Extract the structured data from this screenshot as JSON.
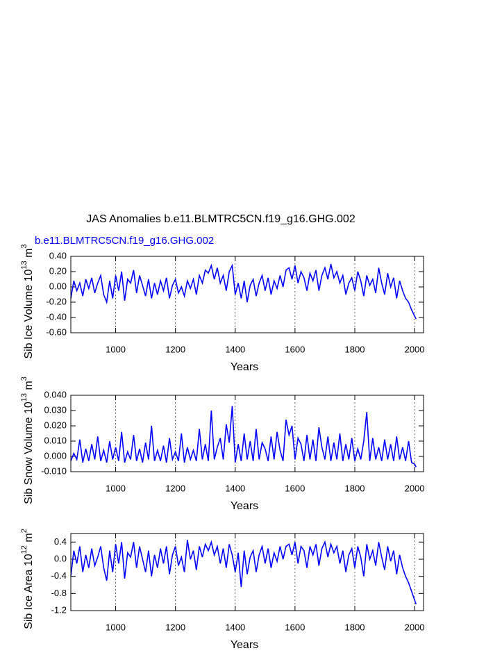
{
  "chart_data": [
    {
      "type": "line",
      "title": "JAS Anomalies b.e11.BLMTRC5CN.f19_g16.GHG.002",
      "ylabel": {
        "base": "Sib Ice Volume 10",
        "exp": "13",
        "unit": " m",
        "unit_exp": "3"
      },
      "xlabel": "Years",
      "x": [
        850,
        860,
        870,
        880,
        890,
        900,
        910,
        920,
        930,
        940,
        950,
        960,
        970,
        980,
        990,
        1000,
        1010,
        1020,
        1030,
        1040,
        1050,
        1060,
        1070,
        1080,
        1090,
        1100,
        1110,
        1120,
        1130,
        1140,
        1150,
        1160,
        1170,
        1180,
        1190,
        1200,
        1210,
        1220,
        1230,
        1240,
        1250,
        1260,
        1270,
        1280,
        1290,
        1300,
        1310,
        1320,
        1330,
        1340,
        1350,
        1360,
        1370,
        1380,
        1390,
        1400,
        1410,
        1420,
        1430,
        1440,
        1450,
        1460,
        1470,
        1480,
        1490,
        1500,
        1510,
        1520,
        1530,
        1540,
        1550,
        1560,
        1570,
        1580,
        1590,
        1600,
        1610,
        1620,
        1630,
        1640,
        1650,
        1660,
        1670,
        1680,
        1690,
        1700,
        1710,
        1720,
        1730,
        1740,
        1750,
        1760,
        1770,
        1780,
        1790,
        1800,
        1810,
        1820,
        1830,
        1840,
        1850,
        1860,
        1870,
        1880,
        1890,
        1900,
        1910,
        1920,
        1930,
        1940,
        1950,
        1960,
        1970,
        1980,
        1990,
        2000,
        2005
      ],
      "series": [
        {
          "name": "b.e11.BLMTRC5CN.f19_g16.GHG.002",
          "color": "#0000ff",
          "values": [
            -0.15,
            0.08,
            -0.05,
            0.05,
            -0.12,
            0.1,
            -0.02,
            0.12,
            -0.08,
            0.05,
            0.15,
            -0.1,
            -0.2,
            0.08,
            -0.15,
            0.15,
            -0.05,
            0.2,
            -0.18,
            0.1,
            0.05,
            0.22,
            -0.08,
            0.15,
            0.02,
            -0.12,
            0.1,
            -0.15,
            0.05,
            -0.1,
            0.08,
            -0.05,
            0.12,
            -0.15,
            0.02,
            0.1,
            -0.08,
            0.0,
            -0.12,
            0.08,
            -0.02,
            0.1,
            -0.1,
            0.15,
            0.05,
            0.22,
            0.18,
            0.28,
            0.1,
            0.25,
            0.05,
            0.15,
            -0.05,
            0.2,
            0.28,
            -0.1,
            0.05,
            -0.15,
            0.08,
            -0.2,
            0.02,
            0.1,
            -0.12,
            0.05,
            0.15,
            -0.05,
            0.12,
            -0.1,
            0.08,
            -0.02,
            0.15,
            0.0,
            0.22,
            0.25,
            0.1,
            0.28,
            0.05,
            0.2,
            0.12,
            -0.05,
            0.18,
            0.08,
            0.22,
            -0.05,
            0.15,
            0.25,
            0.1,
            0.3,
            0.12,
            0.2,
            0.05,
            0.15,
            -0.1,
            0.05,
            0.12,
            -0.05,
            0.2,
            0.08,
            -0.12,
            0.15,
            0.02,
            0.1,
            -0.08,
            0.25,
            0.05,
            -0.1,
            0.18,
            0.0,
            0.12,
            -0.15,
            0.08,
            -0.05,
            -0.15,
            -0.2,
            -0.3,
            -0.38,
            -0.42
          ]
        }
      ],
      "xlim": [
        850,
        2030
      ],
      "xticks": [
        1000,
        1200,
        1400,
        1600,
        1800,
        2000
      ],
      "ylim": [
        -0.6,
        0.4
      ],
      "yticks": [
        {
          "value": 0.4,
          "label": "0.40"
        },
        {
          "value": 0.2,
          "label": "0.20"
        },
        {
          "value": 0,
          "label": "0.00"
        },
        {
          "value": -0.2,
          "label": "-0.20"
        },
        {
          "value": -0.4,
          "label": "-0.40"
        },
        {
          "value": -0.6,
          "label": "-0.60"
        }
      ],
      "grid": true
    },
    {
      "type": "line",
      "ylabel": {
        "base": "Sib Snow Volume 10",
        "exp": "13",
        "unit": " m",
        "unit_exp": "3"
      },
      "xlabel": "Years",
      "x": [
        850,
        860,
        870,
        880,
        890,
        900,
        910,
        920,
        930,
        940,
        950,
        960,
        970,
        980,
        990,
        1000,
        1010,
        1020,
        1030,
        1040,
        1050,
        1060,
        1070,
        1080,
        1090,
        1100,
        1110,
        1120,
        1130,
        1140,
        1150,
        1160,
        1170,
        1180,
        1190,
        1200,
        1210,
        1220,
        1230,
        1240,
        1250,
        1260,
        1270,
        1280,
        1290,
        1300,
        1310,
        1320,
        1330,
        1340,
        1350,
        1360,
        1370,
        1380,
        1390,
        1400,
        1410,
        1420,
        1430,
        1440,
        1450,
        1460,
        1470,
        1480,
        1490,
        1500,
        1510,
        1520,
        1530,
        1540,
        1550,
        1560,
        1570,
        1580,
        1590,
        1600,
        1610,
        1620,
        1630,
        1640,
        1650,
        1660,
        1670,
        1680,
        1690,
        1700,
        1710,
        1720,
        1730,
        1740,
        1750,
        1760,
        1770,
        1780,
        1790,
        1800,
        1810,
        1820,
        1830,
        1840,
        1850,
        1860,
        1870,
        1880,
        1890,
        1900,
        1910,
        1920,
        1930,
        1940,
        1950,
        1960,
        1970,
        1980,
        1990,
        2000,
        2005
      ],
      "color": "#0000ff",
      "values": [
        -0.003,
        0.002,
        -0.002,
        0.011,
        -0.004,
        0.005,
        -0.003,
        0.008,
        -0.002,
        0.013,
        -0.003,
        0.004,
        -0.004,
        0.01,
        -0.002,
        0.006,
        -0.003,
        0.016,
        -0.004,
        0.003,
        -0.002,
        0.014,
        -0.003,
        0.005,
        -0.004,
        0.009,
        -0.002,
        0.02,
        -0.003,
        0.004,
        -0.003,
        0.007,
        -0.004,
        0.012,
        -0.002,
        0.003,
        -0.003,
        0.015,
        -0.004,
        0.006,
        -0.002,
        0.004,
        -0.003,
        0.018,
        -0.002,
        0.008,
        -0.003,
        0.03,
        -0.002,
        0.006,
        0.012,
        -0.002,
        0.021,
        0.009,
        0.033,
        -0.004,
        0.008,
        -0.003,
        0.015,
        -0.002,
        0.01,
        -0.003,
        0.018,
        -0.002,
        0.009,
        0.005,
        -0.003,
        0.013,
        -0.002,
        0.016,
        0.004,
        -0.003,
        0.024,
        0.014,
        0.02,
        -0.002,
        0.012,
        0.008,
        -0.003,
        0.014,
        -0.002,
        0.011,
        -0.003,
        0.019,
        0.006,
        -0.002,
        0.013,
        -0.003,
        0.009,
        -0.002,
        0.015,
        -0.003,
        0.008,
        -0.002,
        0.012,
        -0.003,
        0.005,
        -0.002,
        0.01,
        0.029,
        -0.003,
        0.012,
        -0.002,
        0.006,
        -0.003,
        0.011,
        -0.002,
        0.008,
        -0.003,
        0.013,
        -0.002,
        0.006,
        -0.003,
        0.01,
        -0.004,
        -0.005,
        -0.007
      ],
      "xlim": [
        850,
        2030
      ],
      "xticks": [
        1000,
        1200,
        1400,
        1600,
        1800,
        2000
      ],
      "ylim": [
        -0.01,
        0.04
      ],
      "yticks": [
        {
          "value": 0.04,
          "label": "0.040"
        },
        {
          "value": 0.03,
          "label": "0.030"
        },
        {
          "value": 0.02,
          "label": "0.020"
        },
        {
          "value": 0.01,
          "label": "0.010"
        },
        {
          "value": 0,
          "label": "0.000"
        },
        {
          "value": -0.01,
          "label": "-0.010"
        }
      ],
      "grid": true
    },
    {
      "type": "line",
      "ylabel": {
        "base": "Sib Ice Area 10",
        "exp": "12",
        "unit": " m",
        "unit_exp": "2"
      },
      "xlabel": "Years",
      "x": [
        850,
        860,
        870,
        880,
        890,
        900,
        910,
        920,
        930,
        940,
        950,
        960,
        970,
        980,
        990,
        1000,
        1010,
        1020,
        1030,
        1040,
        1050,
        1060,
        1070,
        1080,
        1090,
        1100,
        1110,
        1120,
        1130,
        1140,
        1150,
        1160,
        1170,
        1180,
        1190,
        1200,
        1210,
        1220,
        1230,
        1240,
        1250,
        1260,
        1270,
        1280,
        1290,
        1300,
        1310,
        1320,
        1330,
        1340,
        1350,
        1360,
        1370,
        1380,
        1390,
        1400,
        1410,
        1420,
        1430,
        1440,
        1450,
        1460,
        1470,
        1480,
        1490,
        1500,
        1510,
        1520,
        1530,
        1540,
        1550,
        1560,
        1570,
        1580,
        1590,
        1600,
        1610,
        1620,
        1630,
        1640,
        1650,
        1660,
        1670,
        1680,
        1690,
        1700,
        1710,
        1720,
        1730,
        1740,
        1750,
        1760,
        1770,
        1780,
        1790,
        1800,
        1810,
        1820,
        1830,
        1840,
        1850,
        1860,
        1870,
        1880,
        1890,
        1900,
        1910,
        1920,
        1930,
        1940,
        1950,
        1960,
        1970,
        1980,
        1990,
        2000,
        2005
      ],
      "color": "#0000ff",
      "values": [
        -0.4,
        0.2,
        -0.1,
        0.3,
        -0.3,
        0.1,
        -0.2,
        0.25,
        -0.15,
        0.05,
        0.3,
        -0.2,
        -0.5,
        0.2,
        -0.3,
        0.35,
        -0.1,
        0.4,
        -0.45,
        0.15,
        0.05,
        0.4,
        -0.2,
        0.3,
        0.0,
        -0.3,
        0.2,
        -0.4,
        0.1,
        -0.2,
        0.25,
        -0.1,
        0.3,
        -0.35,
        0.1,
        0.3,
        -0.15,
        0.05,
        -0.3,
        0.45,
        0.0,
        0.2,
        -0.25,
        0.3,
        0.05,
        0.35,
        0.2,
        0.4,
        0.1,
        0.3,
        -0.1,
        0.25,
        -0.2,
        0.35,
        0.1,
        -0.3,
        0.15,
        -0.65,
        0.2,
        -0.35,
        0.05,
        0.2,
        -0.3,
        0.1,
        0.3,
        -0.1,
        0.25,
        -0.2,
        0.15,
        -0.05,
        0.3,
        0.0,
        0.3,
        0.35,
        0.1,
        0.4,
        -0.1,
        0.3,
        0.2,
        -0.2,
        0.3,
        0.1,
        0.35,
        -0.15,
        0.25,
        0.4,
        0.05,
        0.35,
        0.15,
        0.3,
        -0.1,
        0.2,
        -0.3,
        0.1,
        0.25,
        -0.2,
        0.3,
        0.05,
        -0.4,
        0.35,
        0.0,
        0.2,
        -0.15,
        0.4,
        0.05,
        -0.25,
        0.3,
        -0.05,
        0.2,
        -0.35,
        0.1,
        -0.2,
        -0.4,
        -0.55,
        -0.75,
        -0.95,
        -1.05
      ],
      "xlim": [
        850,
        2030
      ],
      "xticks": [
        1000,
        1200,
        1400,
        1600,
        1800,
        2000
      ],
      "ylim": [
        -1.2,
        0.6
      ],
      "yticks": [
        {
          "value": 0.4,
          "label": "0.4"
        },
        {
          "value": 0,
          "label": "0.0"
        },
        {
          "value": -0.4,
          "label": "-0.4"
        },
        {
          "value": -0.8,
          "label": "-0.8"
        },
        {
          "value": -1.2,
          "label": "-1.2"
        }
      ],
      "grid": true
    }
  ]
}
